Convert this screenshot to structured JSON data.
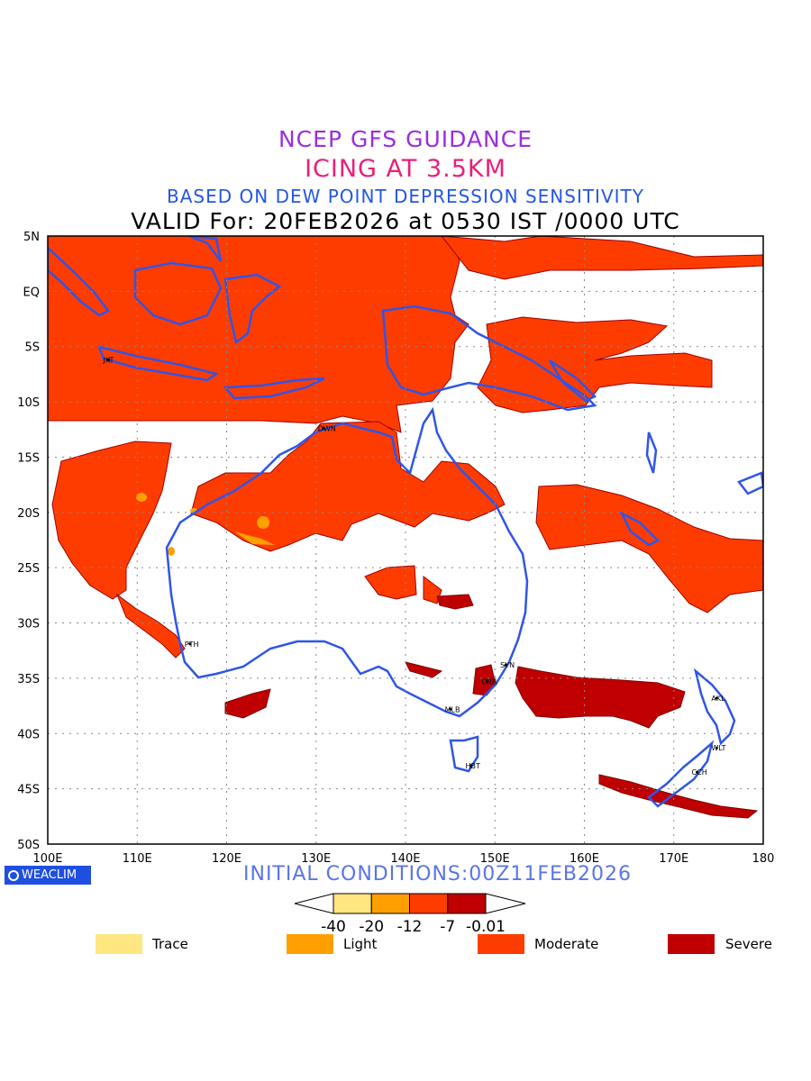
{
  "titles": {
    "line1": "NCEP GFS GUIDANCE",
    "line2": "ICING AT 3.5KM",
    "line3": "BASED ON DEW POINT DEPRESSION SENSITIVITY",
    "line4": "VALID For: 20FEB2026 at 0530 IST /0000 UTC"
  },
  "map": {
    "lat_range": [
      -50,
      5
    ],
    "lon_range": [
      100,
      180
    ],
    "lat_labels": [
      "5N",
      "EQ",
      "5S",
      "10S",
      "15S",
      "20S",
      "25S",
      "30S",
      "35S",
      "40S",
      "45S",
      "50S"
    ],
    "lon_labels": [
      "100E",
      "110E",
      "120E",
      "130E",
      "140E",
      "150E",
      "160E",
      "170E",
      "180"
    ],
    "coastline_color": "#2f55e8",
    "cities": [
      {
        "name": "JKT",
        "lon": 106.8,
        "lat": -6.2
      },
      {
        "name": "DWN",
        "lon": 130.8,
        "lat": -12.4
      },
      {
        "name": "PTH",
        "lon": 115.9,
        "lat": -31.9
      },
      {
        "name": "SYN",
        "lon": 151.2,
        "lat": -33.8
      },
      {
        "name": "CNB",
        "lon": 149.1,
        "lat": -35.3
      },
      {
        "name": "MLB",
        "lon": 145.0,
        "lat": -37.8
      },
      {
        "name": "HBT",
        "lon": 147.3,
        "lat": -42.9
      },
      {
        "name": "AKL",
        "lon": 174.8,
        "lat": -36.8
      },
      {
        "name": "WLT",
        "lon": 174.8,
        "lat": -41.3
      },
      {
        "name": "CCH",
        "lon": 172.6,
        "lat": -43.5
      }
    ]
  },
  "branding": {
    "logo_text": "WEACLIM"
  },
  "initial_conditions": "INITIAL CONDITIONS:00Z11FEB2026",
  "colorbar": {
    "ticks": [
      "-40",
      "-20",
      "-12",
      "-7",
      "-0.01"
    ],
    "colors": [
      "#ffe680",
      "#ffa000",
      "#ff3c00",
      "#c00000"
    ]
  },
  "legend": [
    {
      "label": "Trace",
      "color": "#ffe680"
    },
    {
      "label": "Light",
      "color": "#ffa000"
    },
    {
      "label": "Moderate",
      "color": "#ff3c00"
    },
    {
      "label": "Severe",
      "color": "#c00000"
    }
  ]
}
